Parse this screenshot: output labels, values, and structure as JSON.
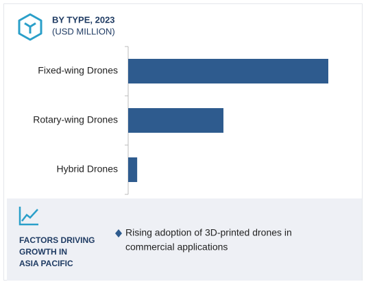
{
  "chart_data": {
    "type": "bar",
    "orientation": "horizontal",
    "title": "BY TYPE, 2023",
    "subtitle": "(USD MILLION)",
    "categories": [
      "Fixed-wing Drones",
      "Rotary-wing Drones",
      "Hybrid Drones"
    ],
    "values": [
      100,
      47.6,
      4.5
    ],
    "color": "#2e5b8e"
  },
  "factors": {
    "heading": [
      "FACTORS DRIVING",
      "GROWTH IN",
      "ASIA PACIFIC"
    ],
    "items": [
      [
        "Rising adoption of 3D-printed drones in",
        "commercial applications"
      ]
    ]
  }
}
